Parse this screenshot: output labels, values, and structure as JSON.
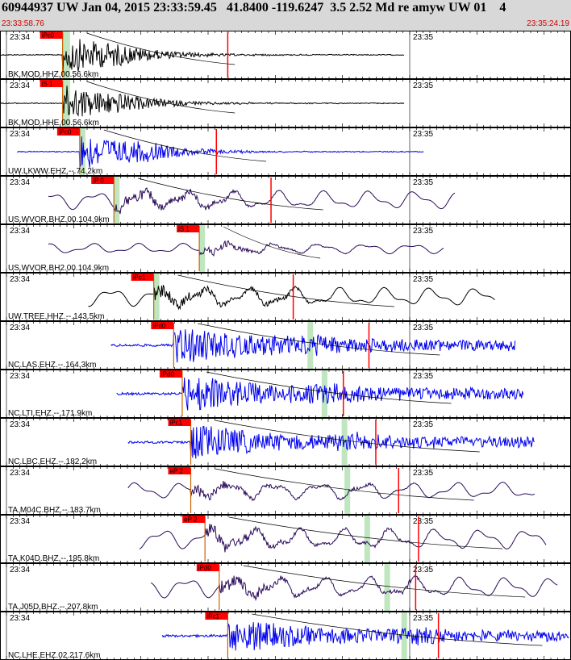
{
  "header": {
    "title": "60944937 UW Jan 04, 2015 23:33:59.45   41.8400 -119.6247  3.5 2.52 Md re amyw UW 01    4",
    "time_start": "23:33:58.76",
    "time_end": "23:35:24.19"
  },
  "colors": {
    "header_bg": "#d8d8d8",
    "pick": "#ff0000",
    "window": "#bfe6bf",
    "black": "#000000",
    "blue": "#0000ee",
    "purple": "#2a0a5a"
  },
  "chart_data": {
    "type": "seismogram",
    "x_unit": "UTC time",
    "x_range": [
      "23:33:58.76",
      "23:35:24.19"
    ],
    "tick_labels": [
      "23:34",
      "23:35"
    ],
    "traces": [
      {
        "label": "BK.MOD.HHZ.00.56.6km",
        "phase": "iPc0",
        "color": "black",
        "start": 0.0,
        "end": 0.71,
        "pick": 0.11,
        "window": [
          0.11,
          0.123
        ],
        "s": 0.2,
        "red": 0.4,
        "amp": 24,
        "style": "sharp"
      },
      {
        "label": "BK.MOD.HHE.00.56.6km",
        "phase": "iS 1",
        "color": "black",
        "start": 0.0,
        "end": 0.71,
        "pick": 0.11,
        "window": [
          0.11,
          0.123
        ],
        "s": 0.2,
        "red": null,
        "amp": 22,
        "style": "sharp"
      },
      {
        "label": "UW.LKWW.EHZ.--.74.2km",
        "phase": "iPc0",
        "color": "blue",
        "start": 0.03,
        "end": 0.745,
        "pick": 0.14,
        "window": [
          0.14,
          0.15
        ],
        "s": 0.255,
        "red": 0.38,
        "amp": 24,
        "style": "sharp"
      },
      {
        "label": "US.WVOR.BHZ.00.104.9km",
        "phase": "iP 0",
        "color": "purple",
        "start": 0.085,
        "end": 0.8,
        "pick": 0.2,
        "window": [
          0.2,
          0.21
        ],
        "s": 0.355,
        "red": 0.476,
        "amp": 18,
        "style": "wavy"
      },
      {
        "label": "US.WVOR.BH2.00.104.9km",
        "phase": "iS 1",
        "color": "purple",
        "start": 0.085,
        "end": 0.78,
        "pick": 0.35,
        "window": [
          0.35,
          0.36
        ],
        "s": 0.35,
        "red": null,
        "amp": 10,
        "style": "wavy"
      },
      {
        "label": "UW.TREE.HHZ.--.143.5km",
        "phase": "iPc1",
        "color": "black",
        "start": 0.155,
        "end": 0.87,
        "pick": 0.27,
        "window": [
          0.27,
          0.28
        ],
        "s": 0.48,
        "red": 0.515,
        "amp": 18,
        "style": "wavy"
      },
      {
        "label": "NC.LAS.EHZ.--.164.3km",
        "phase": "iPd0",
        "color": "blue",
        "start": 0.195,
        "end": 0.905,
        "pick": 0.305,
        "window": [
          0.54,
          0.55
        ],
        "s": 0.56,
        "red": 0.648,
        "amp": 22,
        "style": "noisy"
      },
      {
        "label": "NC.LTI.EHZ.--.171.9km",
        "phase": "iPd0",
        "color": "blue",
        "start": 0.205,
        "end": 0.92,
        "pick": 0.32,
        "window": [
          0.565,
          0.575
        ],
        "s": 0.58,
        "red": 0.603,
        "amp": 22,
        "style": "noisy"
      },
      {
        "label": "NC.LBC.EHZ.--.182.2km",
        "phase": "iPc1",
        "color": "blue",
        "start": 0.225,
        "end": 0.94,
        "pick": 0.335,
        "window": [
          0.6,
          0.61
        ],
        "s": 0.63,
        "red": 0.66,
        "amp": 20,
        "style": "noisy"
      },
      {
        "label": "TA.M04C.BHZ.--.183.7km",
        "phase": "eP 2",
        "color": "purple",
        "start": 0.225,
        "end": 0.94,
        "pick": 0.335,
        "window": [
          0.605,
          0.615
        ],
        "s": 0.62,
        "red": 0.7,
        "amp": 16,
        "style": "wavy"
      },
      {
        "label": "TA.K04D.BHZ.--.195.8km",
        "phase": "eP 2",
        "color": "purple",
        "start": 0.245,
        "end": 0.96,
        "pick": 0.36,
        "window": [
          0.64,
          0.65
        ],
        "s": 0.67,
        "red": 0.735,
        "amp": 20,
        "style": "wavy"
      },
      {
        "label": "TA.J05D.BHZ.--.207.8km",
        "phase": "iPd0",
        "color": "purple",
        "start": 0.265,
        "end": 0.98,
        "pick": 0.385,
        "window": [
          0.675,
          0.685
        ],
        "s": 0.71,
        "red": 0.73,
        "amp": 20,
        "style": "wavy"
      },
      {
        "label": "NC.LHE.EHZ.02.217.6km",
        "phase": "iPc1",
        "color": "blue",
        "start": 0.285,
        "end": 1.0,
        "pick": 0.4,
        "window": [
          0.705,
          0.715
        ],
        "s": 0.74,
        "red": 0.77,
        "amp": 20,
        "style": "noisy"
      }
    ]
  }
}
